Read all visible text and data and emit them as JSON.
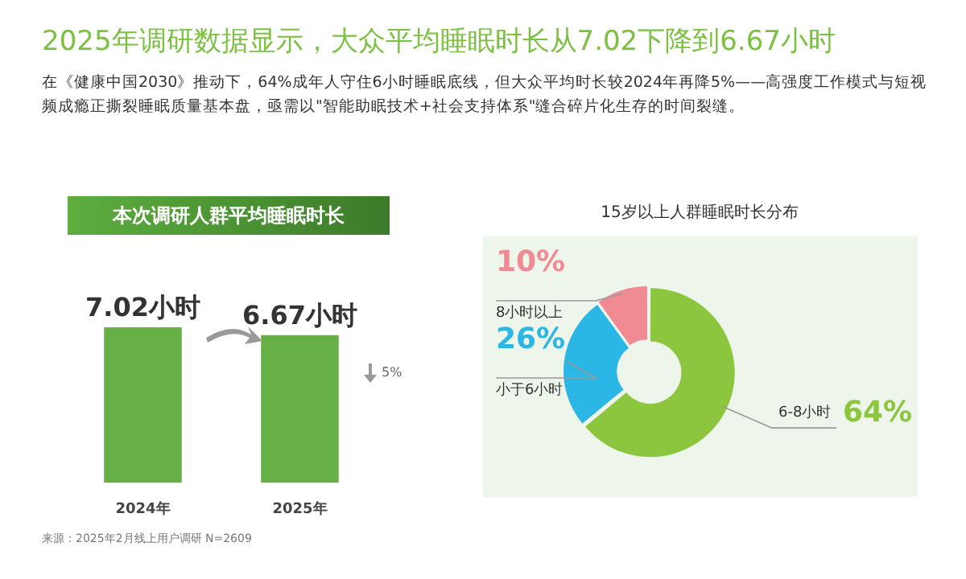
{
  "chart_data": [
    {
      "type": "bar",
      "title": "本次调研人群平均睡眠时长",
      "categories": [
        "2024年",
        "2025年"
      ],
      "values": [
        7.02,
        6.67
      ],
      "color": "#66b046",
      "value_labels": [
        "7.02小时",
        "6.67小时"
      ],
      "annotations": [
        "2025年调研数据显示，大众平均睡眠时长从7.02下降到6.67小时",
        "在《健康中国2030》推动下，64%成年人守住6小时睡眠底线，但大众平均时长较2024年再降5%——高强度工作模式与短视频成瘾正撕裂睡眠质量基本盘，亟需以\"智能助眠技术+社会支持体系\"缝合碎片化生存的时间裂缝。",
        "5%"
      ]
    },
    {
      "type": "donut",
      "title": "15岁以上人群睡眠时长分布",
      "categories": [
        "6-8小时",
        "小于6小时",
        "8小时以上"
      ],
      "values": [
        64,
        26,
        10
      ],
      "colors": [
        "#8cc63f",
        "#2bb7e6",
        "#f08a93"
      ],
      "value_labels": [
        "64%",
        "26%",
        "10%"
      ],
      "annotations": [
        "来源：2025年2月线上用户调研 N=2609"
      ]
    }
  ]
}
